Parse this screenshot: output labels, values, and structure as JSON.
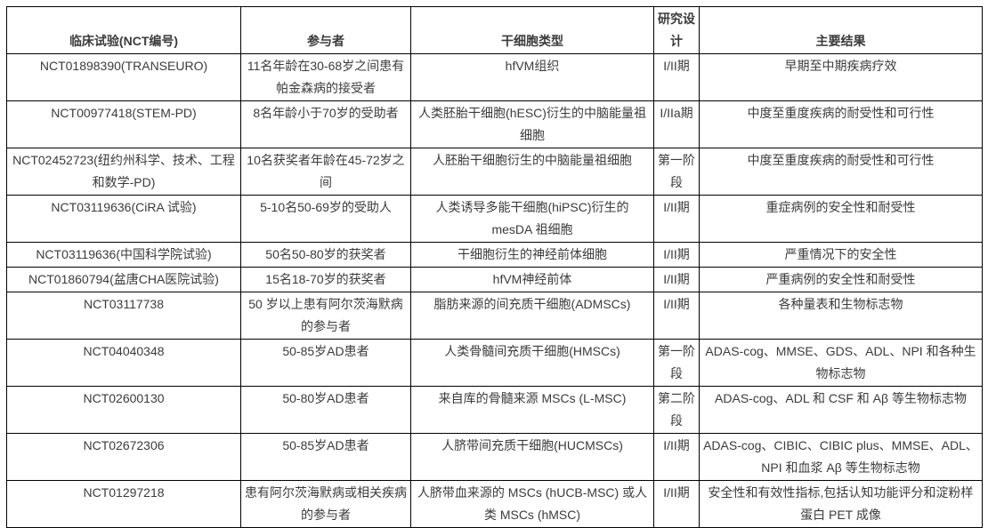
{
  "table": {
    "columns": [
      {
        "key": "trial",
        "label": "临床试验(NCT编号)"
      },
      {
        "key": "participants",
        "label": "参与者"
      },
      {
        "key": "cell_type",
        "label": "干细胞类型"
      },
      {
        "key": "design",
        "label": "研究设计"
      },
      {
        "key": "outcome",
        "label": "主要结果"
      }
    ],
    "rows": [
      {
        "trial": "NCT01898390(TRANSEURO)",
        "participants": "11名年龄在30-68岁之间患有帕金森病的接受者",
        "cell_type": "hfVM组织",
        "design": "I/II期",
        "outcome": "早期至中期疾病疗效"
      },
      {
        "trial": "NCT00977418(STEM-PD)",
        "participants": "8名年龄小于70岁的受助者",
        "cell_type": "人类胚胎干细胞(hESC)衍生的中脑能量祖细胞",
        "design": "I/IIa期",
        "outcome": "中度至重度疾病的耐受性和可行性"
      },
      {
        "trial": "NCT02452723(纽约州科学、技术、工程和数学-PD)",
        "participants": "10名获奖者年龄在45-72岁之间",
        "cell_type": "人胚胎干细胞衍生的中脑能量祖细胞",
        "design": "第一阶段",
        "outcome": "中度至重度疾病的耐受性和可行性"
      },
      {
        "trial": "NCT03119636(CiRA 试验)",
        "participants": "5-10名50-69岁的受助人",
        "cell_type": "人类诱导多能干细胞(hiPSC)衍生的 mesDA 祖细胞",
        "design": "I/II期",
        "outcome": "重症病例的安全性和耐受性"
      },
      {
        "trial": "NCT03119636(中国科学院试验)",
        "participants": "50名50-80岁的获奖者",
        "cell_type": "干细胞衍生的神经前体细胞",
        "design": "I/II期",
        "outcome": "严重情况下的安全性"
      },
      {
        "trial": "NCT01860794(盆唐CHA医院试验)",
        "participants": "15名18-70岁的获奖者",
        "cell_type": "hfVM神经前体",
        "design": "I/II期",
        "outcome": "严重病例的安全性和耐受性"
      },
      {
        "trial": "NCT03117738",
        "participants": "50 岁以上患有阿尔茨海默病的参与者",
        "cell_type": "脂肪来源的间充质干细胞(ADMSCs)",
        "design": "I/II期",
        "outcome": "各种量表和生物标志物"
      },
      {
        "trial": "NCT04040348",
        "participants": "50-85岁AD患者",
        "cell_type": "人类骨髓间充质干细胞(HMSCs)",
        "design": "第一阶段",
        "outcome": "ADAS-cog、MMSE、GDS、ADL、NPI 和各种生物标志物"
      },
      {
        "trial": "NCT02600130",
        "participants": "50-80岁AD患者",
        "cell_type": "来自库的骨髓来源 MSCs (L-MSC)",
        "design": "第二阶段",
        "outcome": "ADAS-cog、ADL 和 CSF 和 Aβ 等生物标志物"
      },
      {
        "trial": "NCT02672306",
        "participants": "50-85岁AD患者",
        "cell_type": "人脐带间充质干细胞(HUCMSCs)",
        "design": "I/II期",
        "outcome": "ADAS-cog、CIBIC、CIBIC plus、MMSE、ADL、NPI 和血浆 Aβ 等生物标志物"
      },
      {
        "trial": "NCT01297218",
        "participants": "患有阿尔茨海默病或相关疾病的参与者",
        "cell_type": "人脐带血来源的 MSCs (hUCB-MSC) 或人类 MSCs (hMSC)",
        "design": "I/II期",
        "outcome": "安全性和有效性指标,包括认知功能评分和淀粉样蛋白 PET 成像"
      }
    ],
    "colors": {
      "text": "#3b3b3b",
      "border": "#000000",
      "background": "#ffffff"
    }
  }
}
